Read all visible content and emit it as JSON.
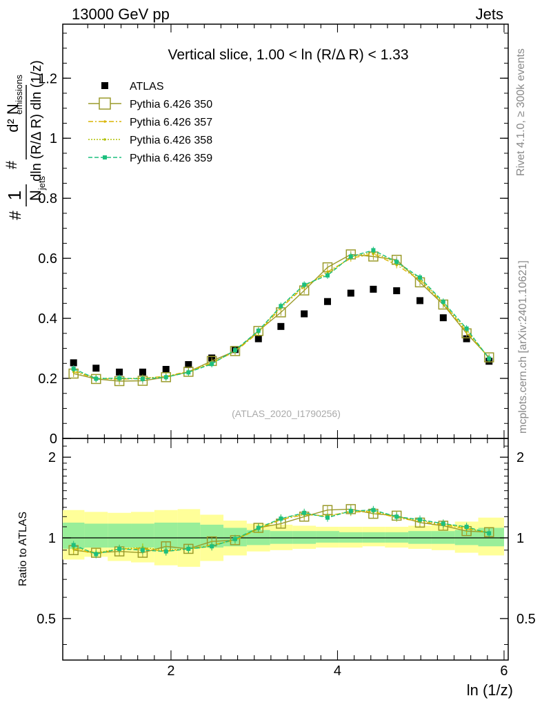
{
  "header": {
    "left": "13000 GeV pp",
    "right": "Jets"
  },
  "side_texts": {
    "rivet": "Rivet 4.1.0, ≥ 300k events",
    "mcplots": "mcplots.cern.ch [arXiv:2401.10621]"
  },
  "watermark": "(ATLAS_2020_I1790256)",
  "chart_data": [
    {
      "type": "scatter",
      "title": "Vertical slice, 1.00 < ln (R/Δ R) < 1.33",
      "ylabel": "1/N_jets d²N_emissions / dln(R/ΔR) dln(1/z)",
      "xlabel": "ln (1/z)",
      "xlim": [
        0.7,
        6.05
      ],
      "ylim": [
        0,
        1.38
      ],
      "y_ticks": [
        {
          "value": 0,
          "label": "0"
        },
        {
          "value": 0.2,
          "label": "0.2"
        },
        {
          "value": 0.4,
          "label": "0.4"
        },
        {
          "value": 0.6,
          "label": "0.6"
        },
        {
          "value": 0.8,
          "label": "0.8"
        },
        {
          "value": 1.0,
          "label": "1"
        },
        {
          "value": 1.2,
          "label": "1.2"
        }
      ],
      "x": [
        0.83,
        1.1,
        1.38,
        1.66,
        1.94,
        2.21,
        2.49,
        2.77,
        3.05,
        3.32,
        3.6,
        3.88,
        4.16,
        4.43,
        4.71,
        4.99,
        5.27,
        5.55,
        5.82
      ],
      "series": [
        {
          "name": "ATLAS",
          "color": "#000000",
          "marker": "filled-square",
          "values": [
            0.252,
            0.234,
            0.221,
            0.221,
            0.23,
            0.246,
            0.268,
            0.296,
            0.332,
            0.373,
            0.415,
            0.456,
            0.484,
            0.497,
            0.492,
            0.459,
            0.402,
            0.332,
            0.257
          ]
        },
        {
          "name": "Pythia 6.426 350",
          "color": "#9a9a2a",
          "marker": "open-square",
          "dash": "",
          "values": [
            0.216,
            0.198,
            0.191,
            0.192,
            0.204,
            0.222,
            0.258,
            0.291,
            0.358,
            0.42,
            0.493,
            0.57,
            0.613,
            0.606,
            0.595,
            0.52,
            0.446,
            0.35,
            0.27
          ]
        },
        {
          "name": "Pythia 6.426 357",
          "color": "#d9b400",
          "marker": "small-dot",
          "dash": "7,3,2,3",
          "values": [
            0.222,
            0.2,
            0.197,
            0.2,
            0.207,
            0.223,
            0.252,
            0.289,
            0.353,
            0.435,
            0.505,
            0.555,
            0.6,
            0.615,
            0.578,
            0.527,
            0.449,
            0.356,
            0.268
          ]
        },
        {
          "name": "Pythia 6.426 358",
          "color": "#b0c000",
          "marker": "small-dot",
          "dash": "2,2",
          "values": [
            0.226,
            0.201,
            0.199,
            0.201,
            0.205,
            0.221,
            0.25,
            0.292,
            0.356,
            0.44,
            0.508,
            0.548,
            0.605,
            0.62,
            0.585,
            0.532,
            0.452,
            0.362,
            0.266
          ]
        },
        {
          "name": "Pythia 6.426 359",
          "color": "#1dbf7e",
          "marker": "filled-circle",
          "dash": "6,3",
          "values": [
            0.232,
            0.199,
            0.201,
            0.198,
            0.204,
            0.22,
            0.248,
            0.294,
            0.359,
            0.441,
            0.512,
            0.543,
            0.606,
            0.627,
            0.588,
            0.536,
            0.455,
            0.366,
            0.266
          ]
        }
      ]
    },
    {
      "type": "scatter",
      "ylabel": "Ratio to ATLAS",
      "xlabel": "ln (1/z)",
      "xlim": [
        0.7,
        6.05
      ],
      "ylim": [
        0.35,
        2.35
      ],
      "y_scale": "log",
      "y_ticks_left": [
        {
          "value": 0.5,
          "label": "0.5"
        },
        {
          "value": 1,
          "label": "1"
        },
        {
          "value": 2,
          "label": "2"
        }
      ],
      "y_ticks_right": [
        {
          "value": 0.5,
          "label": "0.5"
        },
        {
          "value": 1,
          "label": "1"
        },
        {
          "value": 2,
          "label": "2"
        }
      ],
      "x_ticks": [
        {
          "value": 2,
          "label": "2"
        },
        {
          "value": 4,
          "label": "4"
        },
        {
          "value": 6,
          "label": "6"
        }
      ],
      "reference_line": 1,
      "bins": [
        0.7,
        0.96,
        1.24,
        1.52,
        1.8,
        2.08,
        2.35,
        2.63,
        2.91,
        3.19,
        3.46,
        3.74,
        4.02,
        4.3,
        4.57,
        4.85,
        5.13,
        5.41,
        5.69,
        6.0
      ],
      "band_yellow": {
        "color": "#ffff99",
        "lo": [
          0.83,
          0.85,
          0.82,
          0.81,
          0.79,
          0.78,
          0.82,
          0.86,
          0.89,
          0.9,
          0.91,
          0.92,
          0.92,
          0.93,
          0.92,
          0.91,
          0.9,
          0.88,
          0.86
        ],
        "hi": [
          1.27,
          1.25,
          1.24,
          1.25,
          1.27,
          1.28,
          1.22,
          1.16,
          1.13,
          1.12,
          1.11,
          1.1,
          1.1,
          1.1,
          1.1,
          1.11,
          1.12,
          1.15,
          1.19
        ]
      },
      "band_green": {
        "color": "#99ee99",
        "lo": [
          0.91,
          0.92,
          0.92,
          0.92,
          0.91,
          0.91,
          0.92,
          0.93,
          0.94,
          0.95,
          0.95,
          0.96,
          0.96,
          0.96,
          0.96,
          0.95,
          0.95,
          0.94,
          0.93
        ],
        "hi": [
          1.14,
          1.13,
          1.13,
          1.13,
          1.14,
          1.14,
          1.12,
          1.09,
          1.07,
          1.06,
          1.06,
          1.06,
          1.05,
          1.05,
          1.05,
          1.06,
          1.06,
          1.07,
          1.09
        ]
      },
      "x": [
        0.83,
        1.1,
        1.38,
        1.66,
        1.94,
        2.21,
        2.49,
        2.77,
        3.05,
        3.32,
        3.6,
        3.88,
        4.16,
        4.43,
        4.71,
        4.99,
        5.27,
        5.55,
        5.82
      ],
      "series": [
        {
          "name": "Pythia 6.426 350",
          "color": "#9a9a2a",
          "marker": "open-square",
          "dash": "",
          "values": [
            0.9,
            0.88,
            0.89,
            0.88,
            0.93,
            0.91,
            0.97,
            0.98,
            1.09,
            1.13,
            1.2,
            1.27,
            1.28,
            1.23,
            1.21,
            1.14,
            1.11,
            1.06,
            1.05
          ]
        },
        {
          "name": "Pythia 6.426 357",
          "color": "#d9b400",
          "marker": "small-dot",
          "dash": "7,3,2,3",
          "values": [
            0.91,
            0.87,
            0.91,
            0.91,
            0.89,
            0.91,
            0.94,
            0.98,
            1.08,
            1.17,
            1.22,
            1.21,
            1.25,
            1.25,
            1.19,
            1.15,
            1.12,
            1.08,
            1.05
          ]
        },
        {
          "name": "Pythia 6.426 358",
          "color": "#b0c000",
          "marker": "small-dot",
          "dash": "2,2",
          "values": [
            0.92,
            0.88,
            0.91,
            0.92,
            0.9,
            0.91,
            0.93,
            0.99,
            1.08,
            1.18,
            1.23,
            1.2,
            1.26,
            1.26,
            1.2,
            1.16,
            1.13,
            1.09,
            1.04
          ]
        },
        {
          "name": "Pythia 6.426 359",
          "color": "#1dbf7e",
          "marker": "filled-circle",
          "dash": "6,3",
          "values": [
            0.94,
            0.87,
            0.91,
            0.9,
            0.89,
            0.91,
            0.93,
            0.99,
            1.09,
            1.18,
            1.24,
            1.19,
            1.26,
            1.27,
            1.2,
            1.17,
            1.13,
            1.1,
            1.04
          ]
        }
      ]
    }
  ]
}
